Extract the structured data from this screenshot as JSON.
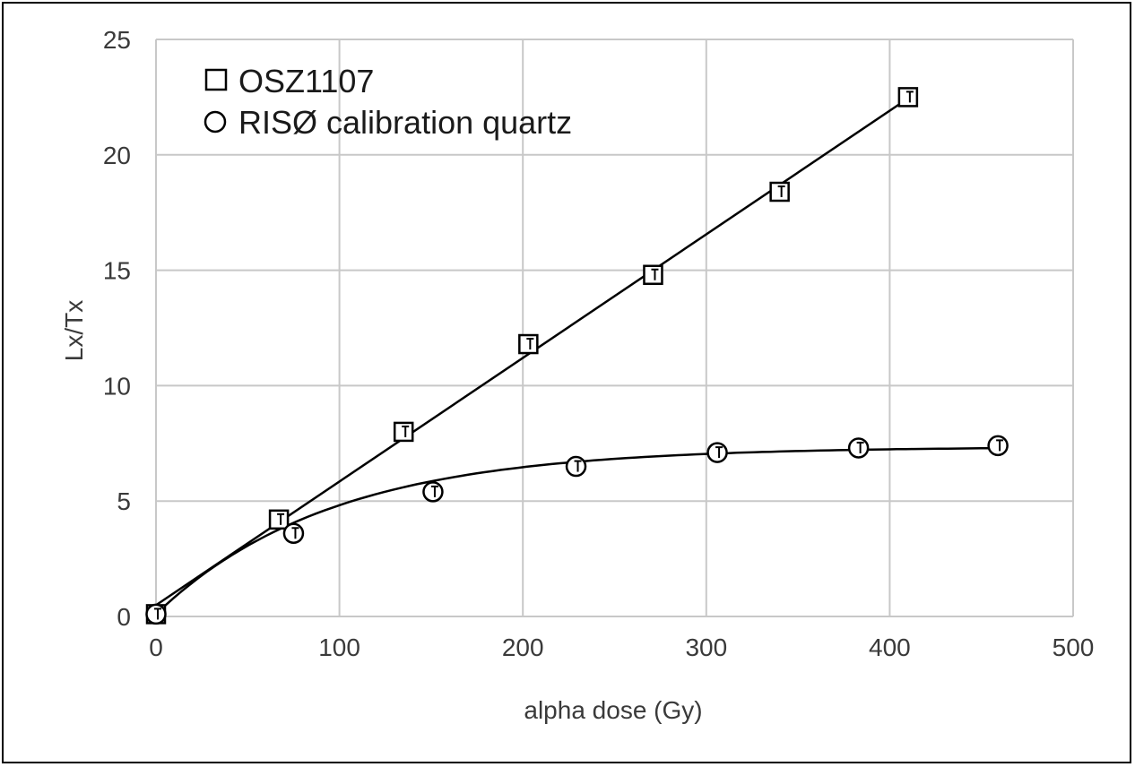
{
  "chart_data": {
    "type": "scatter",
    "title": "",
    "xlabel": "alpha dose (Gy)",
    "ylabel": "Lx/Tx",
    "xlim": [
      0,
      500
    ],
    "ylim": [
      0,
      25
    ],
    "xticks": [
      "0",
      "100",
      "200",
      "300",
      "400",
      "500"
    ],
    "yticks": [
      "0",
      "5",
      "10",
      "15",
      "20",
      "25"
    ],
    "grid": true,
    "legend_position": "top-left",
    "series": [
      {
        "name": "OSZ1107",
        "marker": "square",
        "fit": "linear",
        "color": "#000000",
        "x": [
          0,
          67,
          135,
          203,
          271,
          340,
          410
        ],
        "y": [
          0.1,
          4.2,
          8.0,
          11.8,
          14.8,
          18.4,
          22.5
        ]
      },
      {
        "name": "RISØ calibration quartz",
        "marker": "circle",
        "fit": "saturating-exponential",
        "color": "#000000",
        "x": [
          0,
          75,
          151,
          229,
          306,
          383,
          459
        ],
        "y": [
          0.1,
          3.6,
          5.4,
          6.5,
          7.1,
          7.3,
          7.4
        ]
      }
    ]
  }
}
